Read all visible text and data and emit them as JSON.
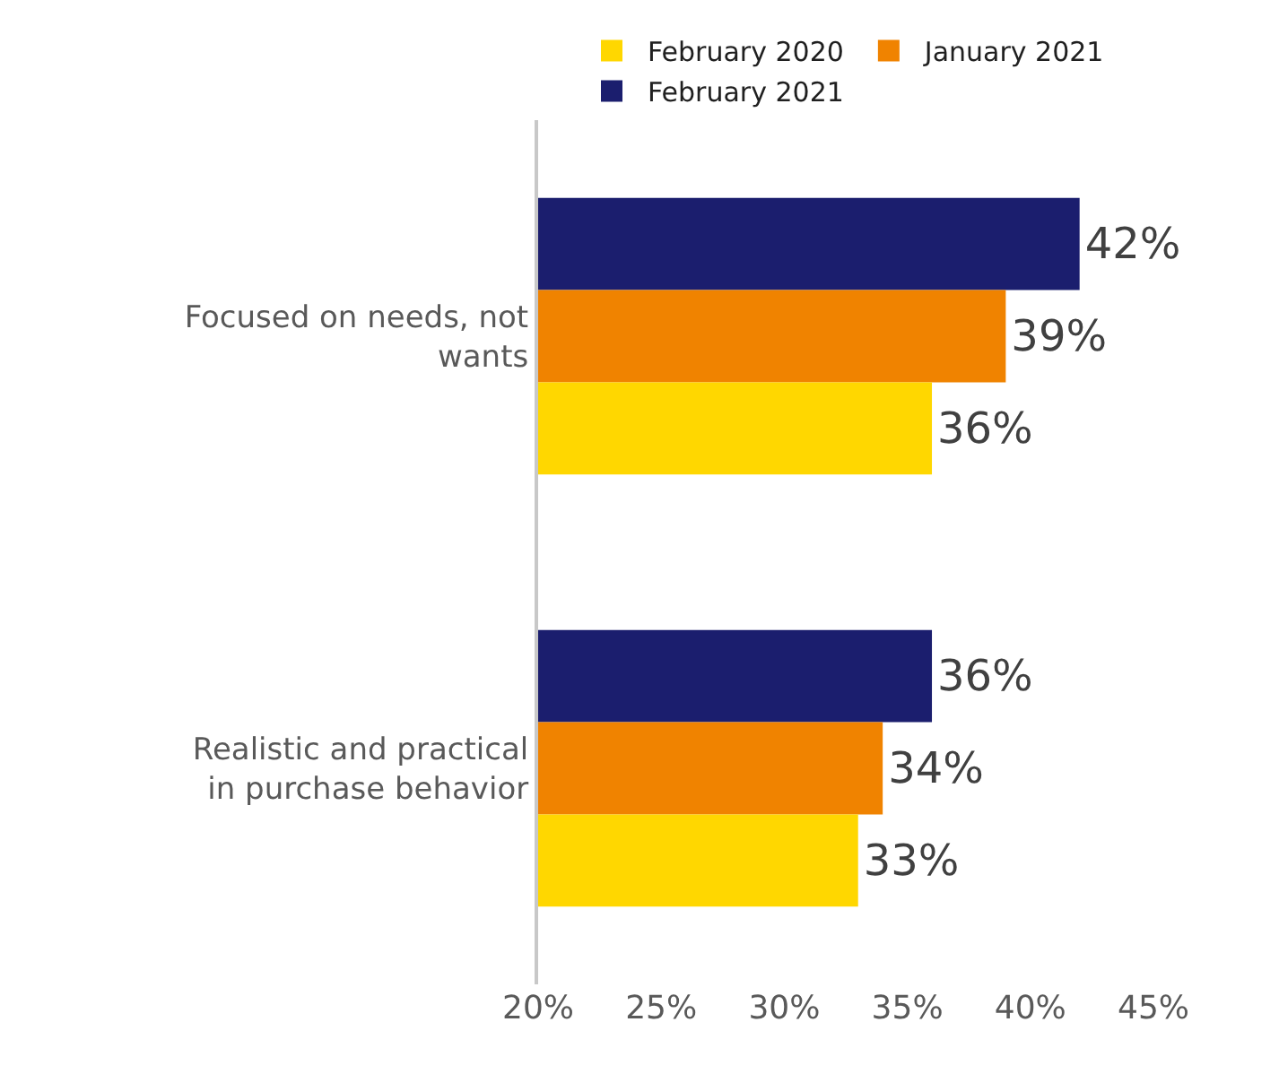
{
  "chart_data": {
    "type": "bar",
    "orientation": "horizontal",
    "categories": [
      "Focused on needs, not wants",
      "Realistic and practical in purchase behavior"
    ],
    "series": [
      {
        "name": "February 2020",
        "color": "#ffd700",
        "values": [
          36,
          33
        ],
        "value_labels": [
          "36%",
          "33%"
        ]
      },
      {
        "name": "January 2021",
        "color": "#f08300",
        "values": [
          39,
          34
        ],
        "value_labels": [
          "39%",
          "34%"
        ]
      },
      {
        "name": "February 2021",
        "color": "#1b1e6e",
        "values": [
          42,
          36
        ],
        "value_labels": [
          "42%",
          "36%"
        ]
      }
    ],
    "xlim": [
      20,
      45
    ],
    "xticks": [
      {
        "value": 20,
        "label": "20%"
      },
      {
        "value": 25,
        "label": "25%"
      },
      {
        "value": 30,
        "label": "30%"
      },
      {
        "value": 35,
        "label": "35%"
      },
      {
        "value": 40,
        "label": "40%"
      },
      {
        "value": 45,
        "label": "45%"
      }
    ],
    "legend": "top"
  }
}
